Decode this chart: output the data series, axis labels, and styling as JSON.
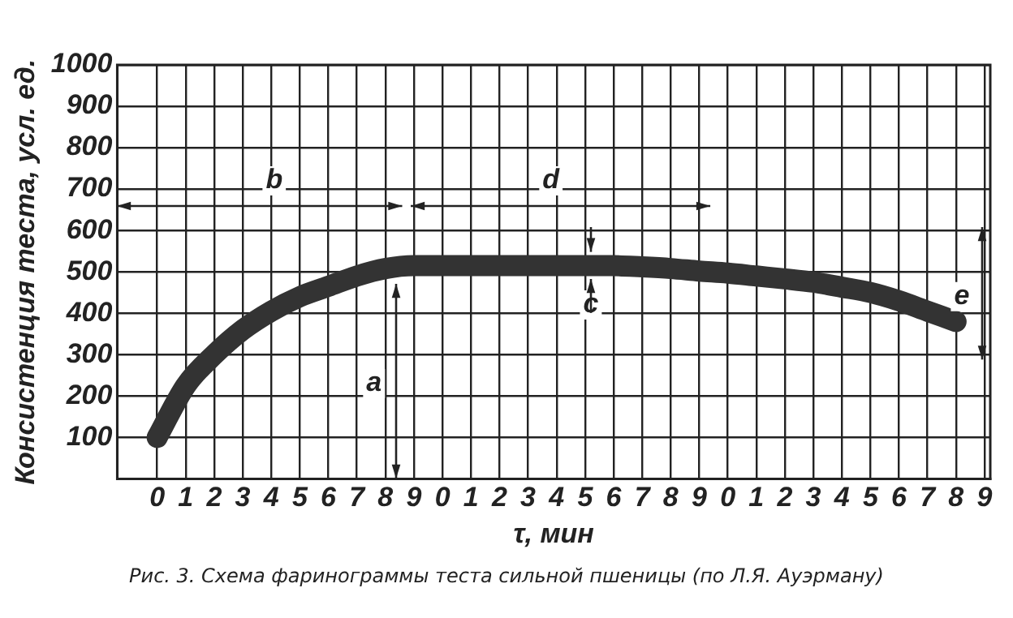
{
  "chart_data": {
    "type": "line",
    "xlabel": "τ, мин",
    "ylabel": "Консистенция теста, усл. ед.",
    "categories": [
      "0",
      "1",
      "2",
      "3",
      "4",
      "5",
      "6",
      "7",
      "8",
      "9",
      "0",
      "1",
      "2",
      "3",
      "4",
      "5",
      "6",
      "7",
      "8",
      "9",
      "0",
      "1",
      "2",
      "3",
      "4",
      "5",
      "6",
      "7",
      "8",
      "9"
    ],
    "series": [
      {
        "color": "#333333",
        "values": [
          100,
          225,
          300,
          360,
          405,
          440,
          465,
          490,
          508,
          515,
          515,
          515,
          515,
          515,
          515,
          515,
          515,
          512,
          508,
          502,
          497,
          490,
          483,
          475,
          463,
          450,
          430,
          405,
          380,
          null
        ]
      }
    ],
    "ylim": [
      0,
      1000
    ],
    "yticks": [
      100,
      200,
      300,
      400,
      500,
      600,
      700,
      800,
      900,
      1000
    ],
    "grid": true,
    "legend": false,
    "marker": "none",
    "line_style": "solid",
    "annotations": [
      "b",
      "d",
      "a",
      "c",
      "e",
      "Рис. 3. Схема фаринограммы теста сильной пшеницы (по Л.Я. Ауэрману)"
    ]
  }
}
